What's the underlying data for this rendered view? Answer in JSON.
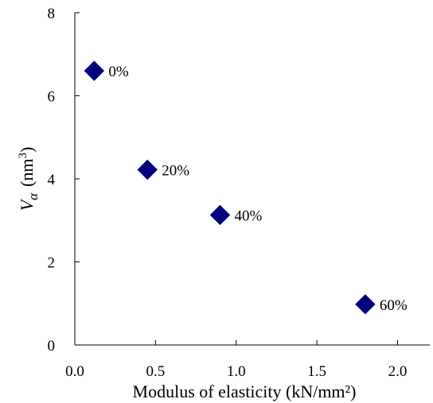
{
  "chart_data": {
    "type": "scatter",
    "title": "",
    "xlabel": "Modulus of elasticity (kN/mm²)",
    "ylabel_parts": {
      "symbol": "V",
      "subscript": "α",
      "unit_open": "(nm",
      "unit_sup": "3",
      "unit_close": ")"
    },
    "xlim": [
      0.0,
      2.2
    ],
    "ylim": [
      0,
      8
    ],
    "x_ticks": [
      0.0,
      0.5,
      1.0,
      1.5,
      2.0
    ],
    "x_tick_labels": [
      "0.0",
      "0.5",
      "1.0",
      "1.5",
      "2.0"
    ],
    "y_ticks": [
      0,
      2,
      4,
      6,
      8
    ],
    "y_tick_labels": [
      "0",
      "2",
      "4",
      "6",
      "8"
    ],
    "grid": false,
    "legend": "none",
    "marker": "diamond",
    "marker_color": "#00007f",
    "points": [
      {
        "x": 0.12,
        "y": 6.6,
        "label": "0%"
      },
      {
        "x": 0.45,
        "y": 4.22,
        "label": "20%"
      },
      {
        "x": 0.9,
        "y": 3.13,
        "label": "40%"
      },
      {
        "x": 1.8,
        "y": 0.98,
        "label": "60%"
      }
    ]
  }
}
